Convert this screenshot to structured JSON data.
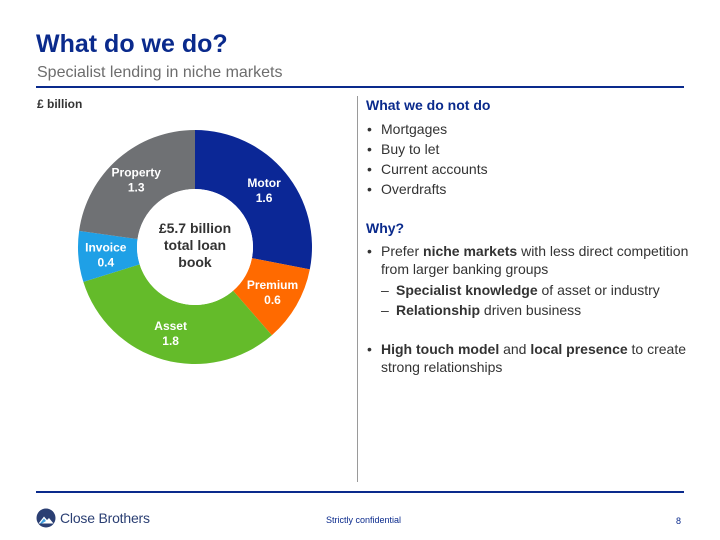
{
  "header": {
    "title": "What do we do?",
    "subtitle": "Specialist lending in niche markets"
  },
  "chart_data": {
    "type": "pie",
    "unit_label": "£ billion",
    "center_label": [
      "£5.7 billion",
      "total loan",
      "book"
    ],
    "slices": [
      {
        "name": "Motor",
        "value": 1.6,
        "value_label": "1.6",
        "color": "#0b2796"
      },
      {
        "name": "Premium",
        "value": 0.6,
        "value_label": "0.6",
        "color": "#ff6a00"
      },
      {
        "name": "Asset",
        "value": 1.8,
        "value_label": "1.8",
        "color": "#64bb2a"
      },
      {
        "name": "Invoice",
        "value": 0.4,
        "value_label": "0.4",
        "color": "#1fa0e6"
      },
      {
        "name": "Property",
        "value": 1.3,
        "value_label": "1.3",
        "color": "#6f7174"
      }
    ]
  },
  "right": {
    "not_do_heading": "What we do not do",
    "not_do_items": [
      "Mortgages",
      "Buy to let",
      "Current accounts",
      "Overdrafts"
    ],
    "why_heading": "Why?",
    "why_1": {
      "pre": "Prefer ",
      "bold": "niche markets",
      "post": " with less direct competition from larger banking groups"
    },
    "sub_1": {
      "bold": "Specialist knowledge",
      "post": " of asset or industry"
    },
    "sub_2": {
      "bold": "Relationship",
      "post": " driven business"
    },
    "why_2": {
      "bold1": "High touch model",
      "mid": " and ",
      "bold2": "local presence",
      "post": " to create strong relationships"
    }
  },
  "footer": {
    "brand": "Close Brothers",
    "confidential": "Strictly confidential",
    "page": "8"
  }
}
